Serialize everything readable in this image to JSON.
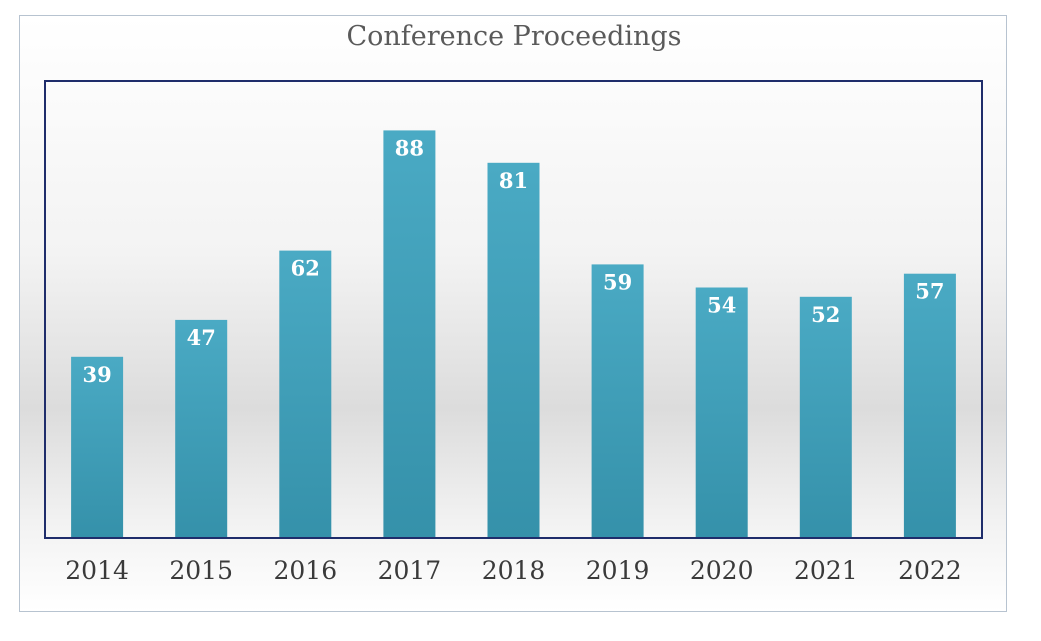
{
  "chart_data": {
    "type": "bar",
    "title": "Conference Proceedings",
    "xlabel": "",
    "ylabel": "",
    "categories": [
      "2014",
      "2015",
      "2016",
      "2017",
      "2018",
      "2019",
      "2020",
      "2021",
      "2022"
    ],
    "values": [
      39,
      47,
      62,
      88,
      81,
      59,
      54,
      52,
      57
    ],
    "ylim": [
      0,
      100
    ],
    "grid": false,
    "legend": "none",
    "bar_color_top": "#4aaac4",
    "bar_color_bottom": "#3591aa",
    "plot_border_color": "#1f2d6b"
  }
}
